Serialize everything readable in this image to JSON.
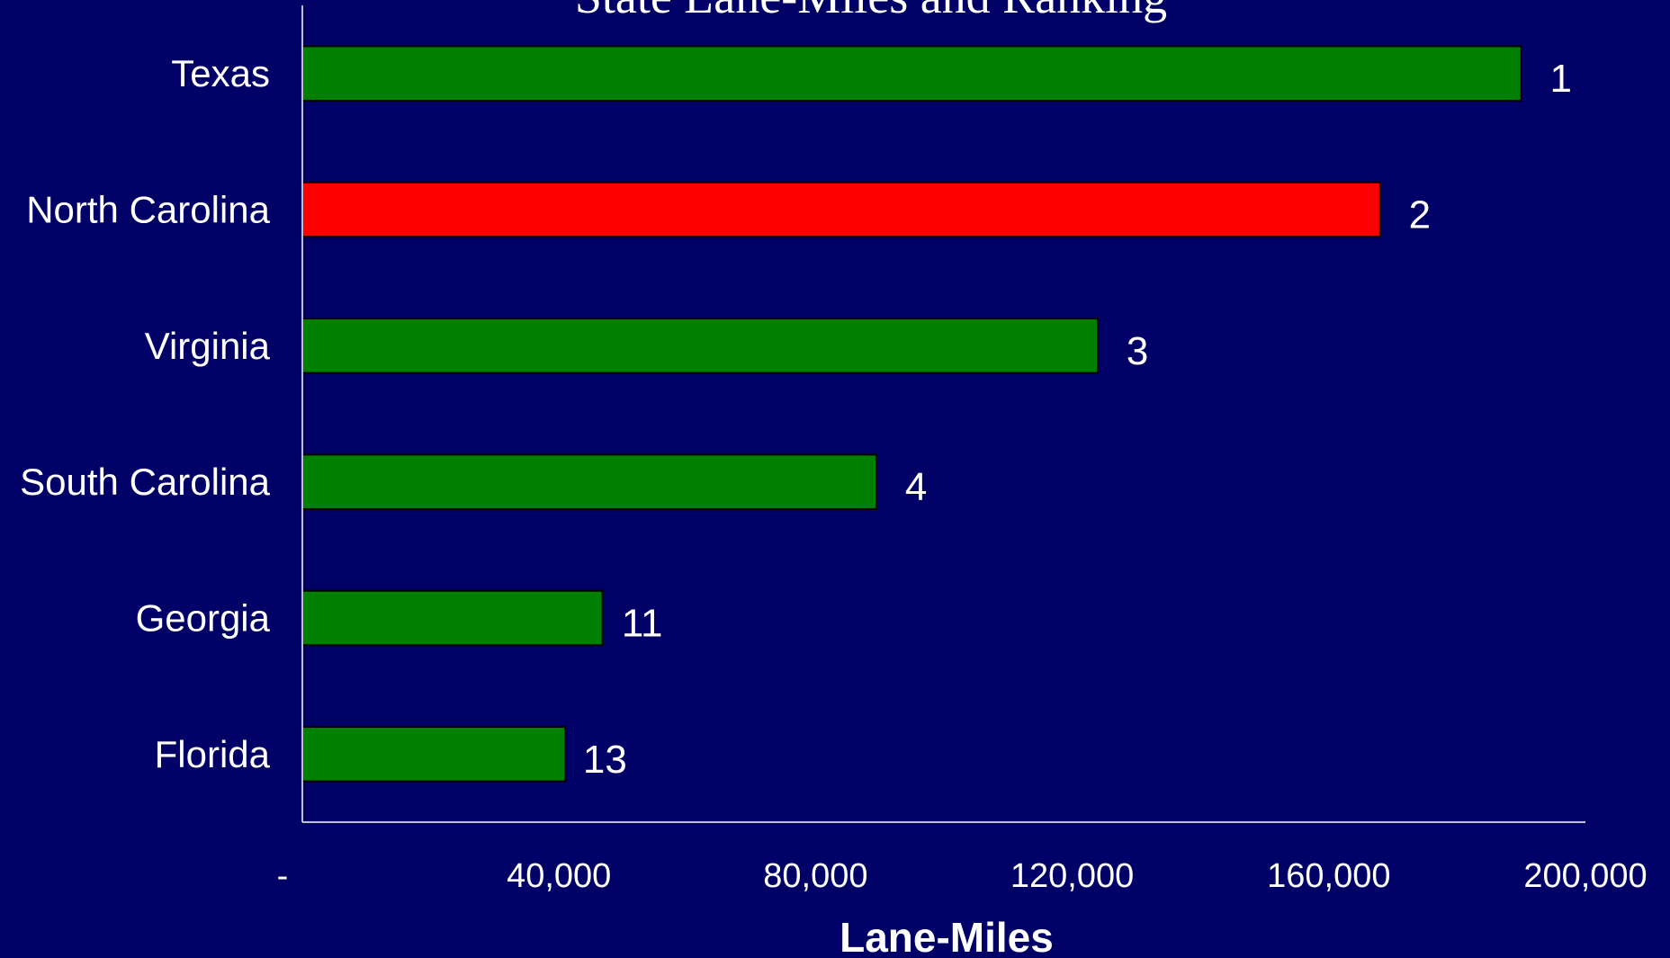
{
  "chart_data": {
    "type": "bar",
    "orientation": "horizontal",
    "title": "State Lane-Miles and Ranking",
    "xlabel": "Lane-Miles",
    "ylabel": "",
    "categories": [
      "Texas",
      "North Carolina",
      "Virginia",
      "South Carolina",
      "Georgia",
      "Florida"
    ],
    "values": [
      190000,
      168000,
      124000,
      89500,
      46800,
      41000
    ],
    "data_labels": [
      "1",
      "2",
      "3",
      "4",
      "11",
      "13"
    ],
    "bar_colors": [
      "#008000",
      "#ff0000",
      "#008000",
      "#008000",
      "#008000",
      "#008000"
    ],
    "xlim": [
      0,
      200000
    ],
    "xticks": [
      0,
      40000,
      80000,
      120000,
      160000,
      200000
    ],
    "xtick_labels": [
      "-",
      "40,000",
      "80,000",
      "120,000",
      "160,000",
      "200,000"
    ],
    "grid": false,
    "legend": "none",
    "colors": {
      "background": "#000066",
      "text": "#ffffff",
      "axis": "#ffffff",
      "bar_outline": "#000000"
    }
  }
}
